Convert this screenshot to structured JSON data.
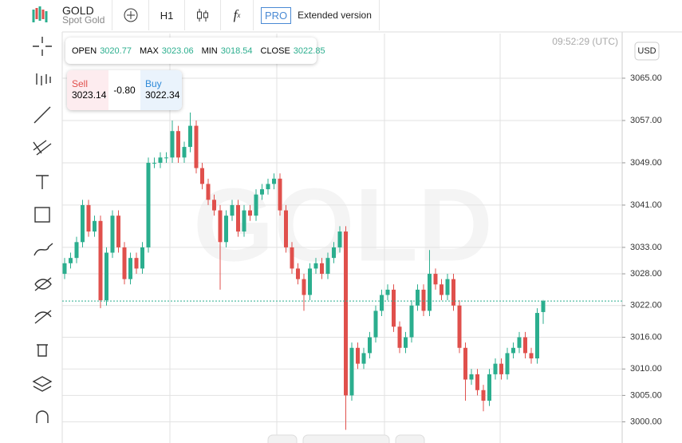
{
  "toolbar": {
    "symbol": "GOLD",
    "subtitle": "Spot Gold",
    "timeframe": "H1",
    "pro": "PRO",
    "extended": "Extended version"
  },
  "quote": {
    "open_label": "OPEN",
    "max_label": "MAX",
    "min_label": "MIN",
    "close_label": "CLOSE",
    "sell_label": "Sell",
    "sell_price": "3023.14",
    "spread": "-0.80",
    "buy_label": "Buy",
    "buy_price": "3022.34",
    "time": "09:52:29 (UTC)",
    "currency": "USD"
  },
  "chart_data": {
    "type": "candlestick",
    "watermark": "GOLD",
    "up_color": "#2bae8e",
    "down_color": "#e0504c",
    "price_line_color": "#2bae8e",
    "grid": true,
    "ylim": [
      2996,
      3073.45
    ],
    "yticks": [
      {
        "value": 3000,
        "label": "3000.00"
      },
      {
        "value": 3005,
        "label": "3005.00"
      },
      {
        "value": 3010,
        "label": "3010.00"
      },
      {
        "value": 3016,
        "label": "3016.00"
      },
      {
        "value": 3022,
        "label": "3022.00"
      },
      {
        "value": 3028,
        "label": "3028.00"
      },
      {
        "value": 3033,
        "label": "3033.00"
      },
      {
        "value": 3041,
        "label": "3041.00"
      },
      {
        "value": 3049,
        "label": "3049.00"
      },
      {
        "value": 3057,
        "label": "3057.00"
      },
      {
        "value": 3065,
        "label": "3065.00"
      }
    ],
    "open": [
      3028,
      3030,
      3031,
      3034,
      3041,
      3036,
      3038,
      3023,
      3032,
      3039,
      3033,
      3027,
      3031,
      3029,
      3033,
      3049,
      3049,
      3050,
      3050,
      3055,
      3050,
      3052,
      3056,
      3048,
      3045,
      3042,
      3040,
      3034,
      3039,
      3041,
      3036,
      3040,
      3039,
      3043,
      3044,
      3045,
      3046,
      3040,
      3033,
      3029,
      3027,
      3024,
      3029,
      3030,
      3028,
      3031,
      3033,
      3036,
      3005,
      3014,
      3011,
      3013,
      3016,
      3021,
      3024,
      3025,
      3018,
      3014,
      3016,
      3022,
      3025,
      3021,
      3028,
      3026,
      3024,
      3027,
      3022,
      3014,
      3008,
      3009,
      3006,
      3004,
      3009,
      3011,
      3009,
      3013,
      3014,
      3016,
      3013,
      3012,
      3020.77
    ],
    "high": [
      3031,
      3032,
      3035,
      3042,
      3042,
      3039,
      3039,
      3033,
      3040,
      3040,
      3034,
      3032,
      3032,
      3034,
      3050,
      3050,
      3051,
      3051,
      3057,
      3056,
      3053,
      3058.5,
      3057,
      3049,
      3046,
      3043,
      3041,
      3040,
      3042,
      3042,
      3041,
      3041,
      3044,
      3045,
      3046,
      3047,
      3047,
      3041,
      3034,
      3030,
      3028,
      3030,
      3031,
      3031,
      3032,
      3034,
      3037,
      3037,
      3015,
      3015,
      3014,
      3017,
      3022,
      3025,
      3026,
      3026,
      3019,
      3017,
      3023,
      3026,
      3026,
      3032.5,
      3029,
      3027,
      3028,
      3028,
      3023,
      3015,
      3010,
      3010,
      3007,
      3010,
      3012,
      3012,
      3014,
      3015,
      3017,
      3017,
      3014,
      3021.5,
      3023.06
    ],
    "low": [
      3027,
      3029,
      3030,
      3033,
      3035,
      3035,
      3021.5,
      3022,
      3031,
      3032,
      3026,
      3026,
      3028,
      3028,
      3032,
      3048,
      3048,
      3049,
      3049,
      3049,
      3049,
      3051,
      3047,
      3044,
      3041,
      3039,
      3025,
      3033,
      3038,
      3035,
      3035,
      3038,
      3038,
      3042,
      3043,
      3044,
      3039,
      3032,
      3028,
      3026,
      3021,
      3023,
      3028,
      3027,
      3027,
      3030,
      3032,
      2998.5,
      3004,
      3010,
      3010,
      3012,
      3015,
      3020,
      3023,
      3017,
      3013,
      3013,
      3015,
      3021,
      3020,
      3020,
      3025,
      3023,
      3023,
      3021,
      3013,
      3004,
      3007,
      3005,
      3002,
      3003,
      3008,
      3008,
      3008,
      3012,
      3013,
      3012,
      3011,
      3011,
      3018.54
    ],
    "close": [
      3030,
      3031,
      3034,
      3041,
      3036,
      3038,
      3023,
      3032,
      3039,
      3033,
      3027,
      3031,
      3029,
      3033,
      3049,
      3049,
      3050,
      3050,
      3055,
      3050,
      3052,
      3056,
      3048,
      3045,
      3042,
      3040,
      3034,
      3039,
      3041,
      3036,
      3040,
      3039,
      3043,
      3044,
      3045,
      3046,
      3040,
      3033,
      3029,
      3027,
      3024,
      3029,
      3030,
      3028,
      3031,
      3033,
      3036,
      3005,
      3014,
      3011,
      3013,
      3016,
      3021,
      3024,
      3025,
      3018,
      3014,
      3016,
      3022,
      3025,
      3021,
      3028,
      3026,
      3024,
      3027,
      3022,
      3014,
      3008,
      3009,
      3006,
      3004,
      3009,
      3011,
      3009,
      3013,
      3014,
      3016,
      3013,
      3012,
      3020.6,
      3022.85
    ]
  }
}
